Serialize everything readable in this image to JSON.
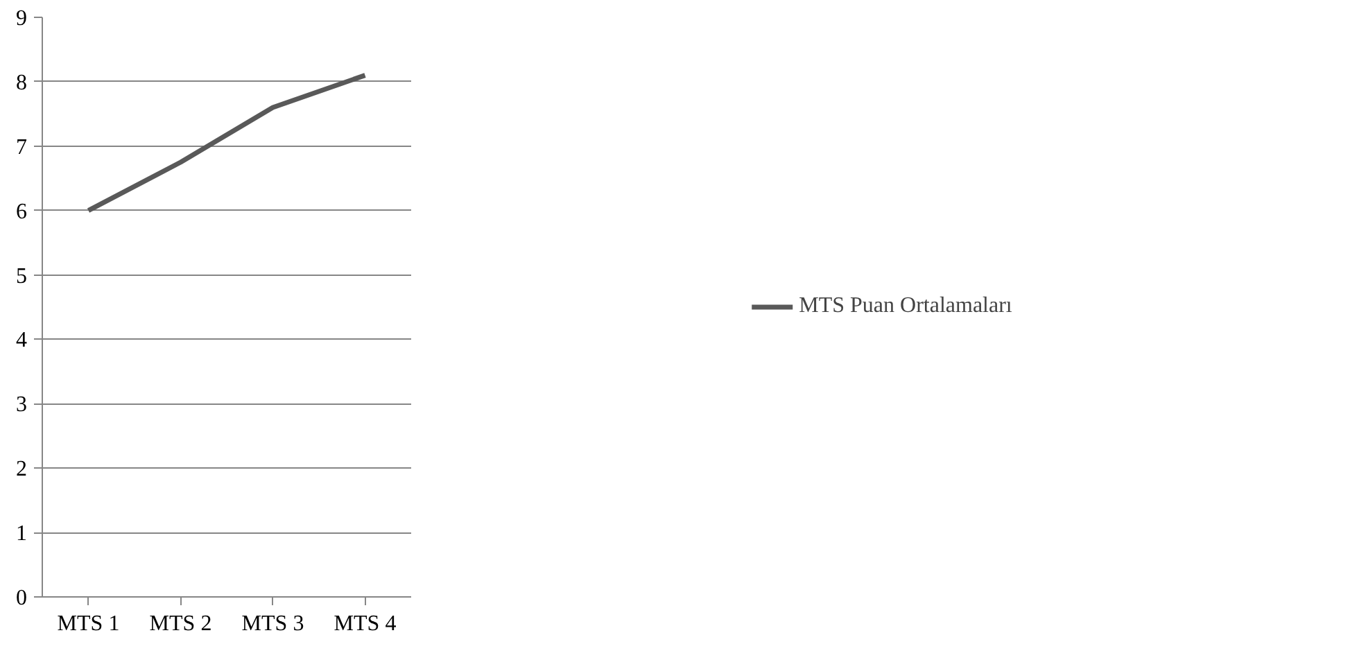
{
  "chart_data": {
    "type": "line",
    "categories": [
      "MTS 1",
      "MTS 2",
      "MTS 3",
      "MTS 4"
    ],
    "series": [
      {
        "name": "MTS Puan Ortalamaları",
        "color": "#595959",
        "values": [
          6.0,
          6.75,
          7.6,
          8.1
        ]
      }
    ],
    "ylim": [
      0,
      9
    ],
    "yticks": [
      0,
      1,
      2,
      3,
      4,
      5,
      6,
      7,
      8,
      9
    ],
    "grid": "y",
    "legend": "right",
    "marker": "none",
    "line_style": "solid"
  }
}
